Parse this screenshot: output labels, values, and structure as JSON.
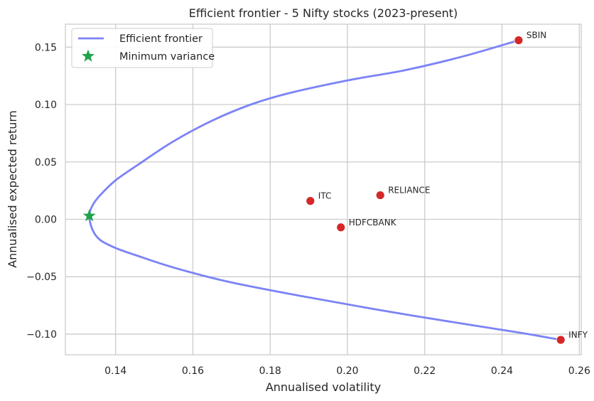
{
  "chart_data": {
    "type": "line",
    "title": "Efficient frontier - 5 Nifty stocks (2023-present)",
    "xlabel": "Annualised volatility",
    "ylabel": "Annualised expected return",
    "xlim": [
      0.127,
      0.2605
    ],
    "ylim": [
      -0.118,
      0.17
    ],
    "xticks": [
      0.14,
      0.16,
      0.18,
      0.2,
      0.22,
      0.24,
      0.26
    ],
    "xtick_labels": [
      "0.14",
      "0.16",
      "0.18",
      "0.20",
      "0.22",
      "0.24",
      "0.26"
    ],
    "yticks": [
      -0.1,
      -0.05,
      0.0,
      0.05,
      0.1,
      0.15
    ],
    "ytick_labels": [
      "−0.10",
      "−0.05",
      "0.00",
      "0.05",
      "0.10",
      "0.15"
    ],
    "grid": true,
    "legend": {
      "position": "top-left",
      "entries": [
        "Efficient frontier",
        "Minimum variance"
      ]
    },
    "frontier": {
      "name": "Efficient frontier",
      "color": "#7b83f6",
      "points": [
        [
          0.2443,
          0.156
        ],
        [
          0.23,
          0.142
        ],
        [
          0.215,
          0.13
        ],
        [
          0.2,
          0.121
        ],
        [
          0.185,
          0.11
        ],
        [
          0.175,
          0.1
        ],
        [
          0.165,
          0.086
        ],
        [
          0.155,
          0.068
        ],
        [
          0.146,
          0.048
        ],
        [
          0.14,
          0.034
        ],
        [
          0.136,
          0.021
        ],
        [
          0.134,
          0.012
        ],
        [
          0.1332,
          0.003
        ],
        [
          0.134,
          -0.009
        ],
        [
          0.136,
          -0.018
        ],
        [
          0.14,
          -0.025
        ],
        [
          0.145,
          -0.031
        ],
        [
          0.155,
          -0.042
        ],
        [
          0.17,
          -0.055
        ],
        [
          0.19,
          -0.068
        ],
        [
          0.21,
          -0.08
        ],
        [
          0.23,
          -0.091
        ],
        [
          0.245,
          -0.099
        ],
        [
          0.2552,
          -0.105
        ]
      ]
    },
    "minimum_variance": {
      "name": "Minimum variance",
      "x": 0.1332,
      "y": 0.003,
      "color": "#1fa34a",
      "icon": "star-icon"
    },
    "assets": [
      {
        "label": "SBIN",
        "x": 0.2443,
        "y": 0.156
      },
      {
        "label": "ITC",
        "x": 0.1904,
        "y": 0.016
      },
      {
        "label": "RELIANCE",
        "x": 0.2085,
        "y": 0.021
      },
      {
        "label": "HDFCBANK",
        "x": 0.1983,
        "y": -0.007
      },
      {
        "label": "INFY",
        "x": 0.2552,
        "y": -0.105
      }
    ],
    "asset_color": "#d62728"
  }
}
